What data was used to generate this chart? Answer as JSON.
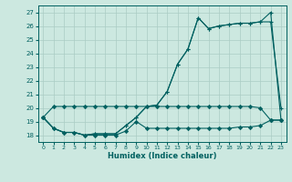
{
  "xlabel": "Humidex (Indice chaleur)",
  "bg_color": "#cce8e0",
  "grid_color": "#aaccc4",
  "line_color": "#006060",
  "xlim": [
    -0.5,
    23.5
  ],
  "ylim": [
    17.5,
    27.5
  ],
  "xticks": [
    0,
    1,
    2,
    3,
    4,
    5,
    6,
    7,
    8,
    9,
    10,
    11,
    12,
    13,
    14,
    15,
    16,
    17,
    18,
    19,
    20,
    21,
    22,
    23
  ],
  "yticks": [
    18,
    19,
    20,
    21,
    22,
    23,
    24,
    25,
    26,
    27
  ],
  "series1_x": [
    0,
    1,
    2,
    3,
    4,
    5,
    6,
    7,
    8,
    9,
    10,
    11,
    12,
    13,
    14,
    15,
    16,
    17,
    18,
    19,
    20,
    21,
    22,
    23
  ],
  "series1_y": [
    19.3,
    20.1,
    20.1,
    20.1,
    20.1,
    20.1,
    20.1,
    20.1,
    20.1,
    20.1,
    20.1,
    20.1,
    20.1,
    20.1,
    20.1,
    20.1,
    20.1,
    20.1,
    20.1,
    20.1,
    20.1,
    20.0,
    19.1,
    19.1
  ],
  "series2_x": [
    0,
    1,
    2,
    3,
    4,
    5,
    6,
    7,
    8,
    9,
    10,
    11,
    12,
    13,
    14,
    15,
    16,
    17,
    18,
    19,
    20,
    21,
    22,
    23
  ],
  "series2_y": [
    19.3,
    18.5,
    18.2,
    18.2,
    18.0,
    18.0,
    18.0,
    18.0,
    18.3,
    19.0,
    18.5,
    18.5,
    18.5,
    18.5,
    18.5,
    18.5,
    18.5,
    18.5,
    18.5,
    18.6,
    18.6,
    18.7,
    19.1,
    19.1
  ],
  "series3_x": [
    0,
    1,
    2,
    3,
    4,
    5,
    6,
    7,
    8,
    9,
    10,
    11,
    12,
    13,
    14,
    15,
    16,
    17,
    18,
    19,
    20,
    21,
    22,
    23
  ],
  "series3_y": [
    19.3,
    18.5,
    18.2,
    18.2,
    18.0,
    18.1,
    18.1,
    18.1,
    18.7,
    19.3,
    20.1,
    20.2,
    21.2,
    23.2,
    24.3,
    26.6,
    25.8,
    26.0,
    26.1,
    26.2,
    26.2,
    26.3,
    26.3,
    20.0
  ],
  "series4_x": [
    0,
    1,
    2,
    3,
    4,
    5,
    6,
    7,
    8,
    9,
    10,
    11,
    12,
    13,
    14,
    15,
    16,
    17,
    18,
    19,
    20,
    21,
    22,
    23
  ],
  "series4_y": [
    19.3,
    18.5,
    18.2,
    18.2,
    18.0,
    18.1,
    18.1,
    18.1,
    18.7,
    19.3,
    20.1,
    20.2,
    21.2,
    23.2,
    24.3,
    26.6,
    25.8,
    26.0,
    26.1,
    26.2,
    26.2,
    26.3,
    27.0,
    19.1
  ]
}
